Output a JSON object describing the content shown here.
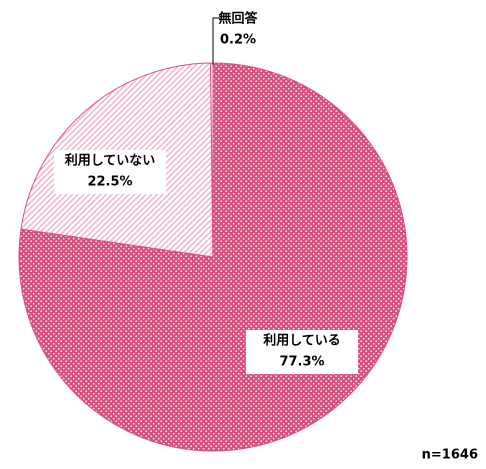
{
  "chart_data": {
    "type": "pie",
    "categories": [
      "利用している",
      "利用していない",
      "無回答"
    ],
    "values": [
      77.3,
      22.5,
      0.2
    ],
    "value_labels": [
      "77.3%",
      "22.5%",
      "0.2%"
    ],
    "colors": [
      "#d9507c",
      "#f2a9c0",
      "#ffffff"
    ],
    "annotation": "n=1646"
  }
}
